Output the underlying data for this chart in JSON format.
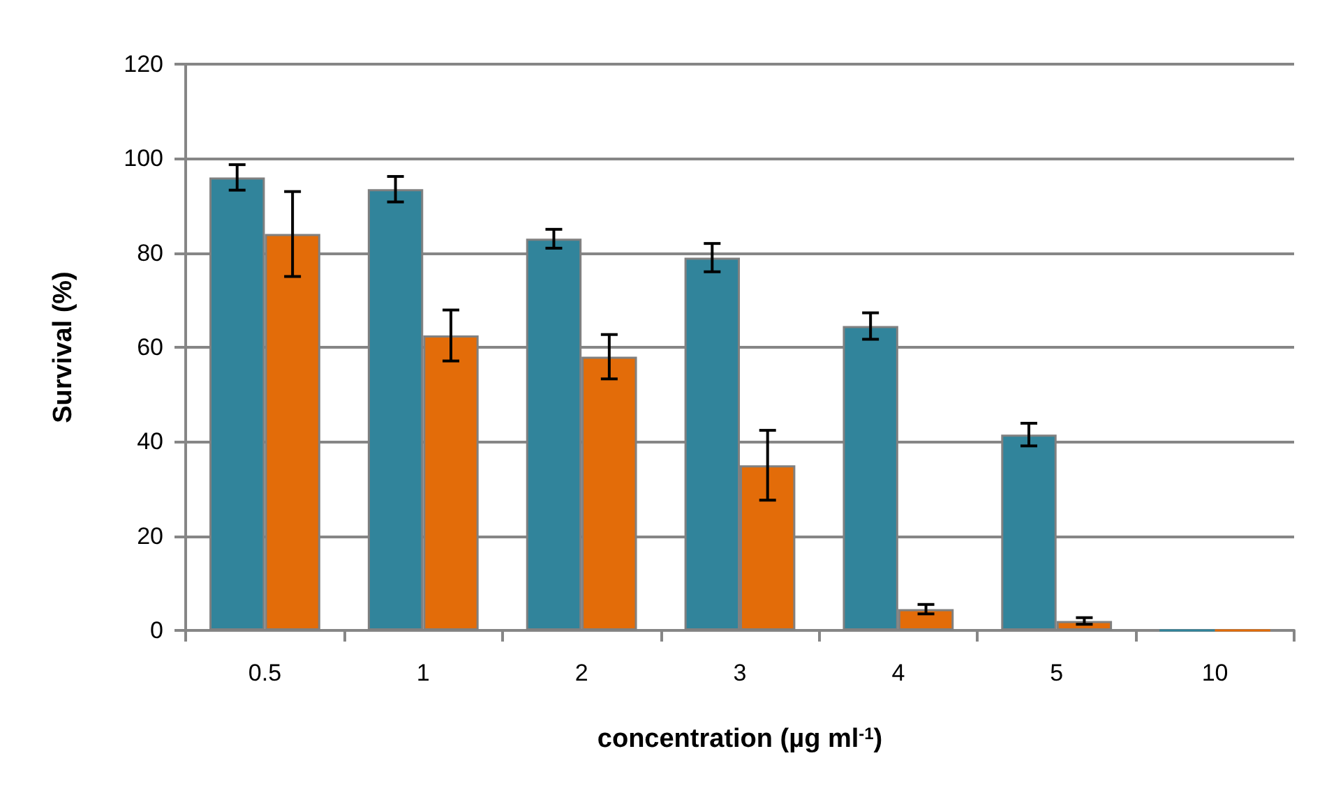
{
  "chart_data": {
    "type": "bar",
    "xlabel": "concentration (µg ml$^{-1}$)",
    "ylabel": "Survival (%)",
    "categories": [
      "0.5",
      "1",
      "2",
      "3",
      "4",
      "5",
      "10"
    ],
    "series": [
      {
        "color": "#31849b",
        "values": [
          96,
          93.5,
          83,
          79,
          64.5,
          41.5,
          0
        ],
        "errors": [
          2.7,
          2.7,
          2,
          3,
          2.8,
          2.4,
          null
        ]
      },
      {
        "color": "#e36c09",
        "values": [
          84,
          62.5,
          58,
          35,
          4.5,
          2,
          0
        ],
        "errors": [
          9,
          5.4,
          4.7,
          7.4,
          1,
          0.7,
          null
        ]
      }
    ],
    "ylim": [
      0,
      120
    ],
    "yticks": [
      0,
      20,
      40,
      60,
      80,
      100,
      120
    ],
    "grid": "y"
  }
}
